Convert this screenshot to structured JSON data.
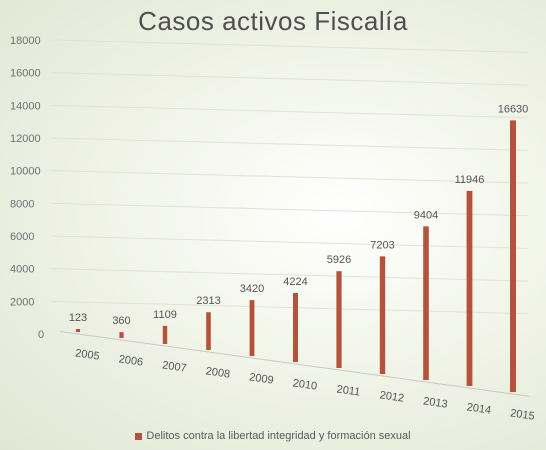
{
  "chart_data": {
    "type": "bar",
    "title": "Casos activos Fiscalía",
    "categories": [
      "2005",
      "2006",
      "2007",
      "2008",
      "2009",
      "2010",
      "2011",
      "2012",
      "2013",
      "2014",
      "2015"
    ],
    "series": [
      {
        "name": "Delitos contra la libertad integridad y formación sexual",
        "values": [
          123,
          360,
          1109,
          2313,
          3420,
          4224,
          5926,
          7203,
          9404,
          11946,
          16630
        ]
      }
    ],
    "y_ticks": [
      "0",
      "2000",
      "4000",
      "6000",
      "8000",
      "10000",
      "12000",
      "14000",
      "16000",
      "18000"
    ],
    "ylim": [
      0,
      18000
    ],
    "grid": true,
    "legend_position": "bottom",
    "bar_color": "#b5523b"
  }
}
